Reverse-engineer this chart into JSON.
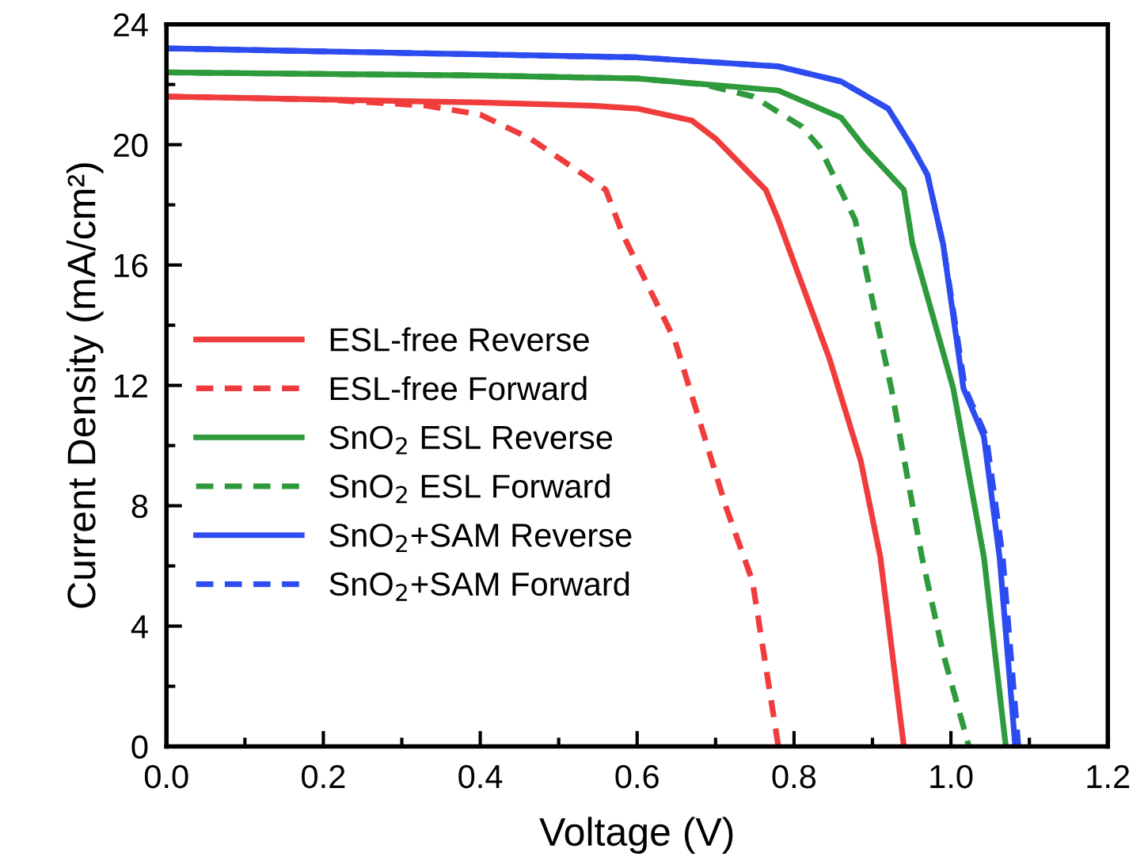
{
  "chart_data": {
    "type": "line",
    "xlabel": "Voltage (V)",
    "ylabel": "Current Density (mA/cm²)",
    "xlim": [
      0,
      1.2
    ],
    "ylim": [
      0,
      24
    ],
    "xticks": [
      {
        "value": 0,
        "label": "0.0"
      },
      {
        "value": 0.1,
        "label": null
      },
      {
        "value": 0.2,
        "label": "0.2"
      },
      {
        "value": 0.3,
        "label": null
      },
      {
        "value": 0.4,
        "label": "0.4"
      },
      {
        "value": 0.5,
        "label": null
      },
      {
        "value": 0.6,
        "label": "0.6"
      },
      {
        "value": 0.7,
        "label": null
      },
      {
        "value": 0.8,
        "label": "0.8"
      },
      {
        "value": 0.9,
        "label": null
      },
      {
        "value": 1.0,
        "label": "1.0"
      },
      {
        "value": 1.1,
        "label": null
      },
      {
        "value": 1.2,
        "label": "1.2"
      }
    ],
    "yticks": [
      0,
      {
        "value": 2,
        "label": null
      },
      4,
      {
        "value": 6,
        "label": null
      },
      8,
      {
        "value": 10,
        "label": null
      },
      12,
      {
        "value": 14,
        "label": null
      },
      16,
      {
        "value": 18,
        "label": null
      },
      20,
      {
        "value": 22,
        "label": null
      },
      24
    ],
    "grid": false,
    "legend": "center",
    "marker": "none",
    "series": [
      {
        "name": "ESL-free Reverse",
        "color": "#f03c3c",
        "line_style": "solid",
        "x": [
          0,
          0.2,
          0.4,
          0.54,
          0.6,
          0.67,
          0.7,
          0.764,
          0.78,
          0.845,
          0.885,
          0.91,
          0.94
        ],
        "values": [
          21.6,
          21.5,
          21.4,
          21.3,
          21.2,
          20.8,
          20.2,
          18.5,
          17.5,
          12.9,
          9.5,
          6.3,
          0
        ]
      },
      {
        "name": "ESL-free Forward",
        "color": "#f03c3c",
        "line_style": "dashed",
        "x": [
          0,
          0.2,
          0.33,
          0.4,
          0.464,
          0.56,
          0.582,
          0.648,
          0.714,
          0.747,
          0.78
        ],
        "values": [
          21.6,
          21.5,
          21.3,
          21.0,
          20.2,
          18.5,
          17.0,
          13.5,
          7.9,
          5.5,
          0
        ]
      },
      {
        "name": "SnO$_{2}$ ESL Reverse",
        "color": "#2e9a3c",
        "line_style": "solid",
        "x": [
          0,
          0.4,
          0.6,
          0.78,
          0.86,
          0.89,
          0.94,
          0.951,
          1.003,
          1.042,
          1.07
        ],
        "values": [
          22.4,
          22.3,
          22.2,
          21.8,
          20.9,
          19.9,
          18.5,
          16.7,
          11.9,
          6.3,
          0
        ]
      },
      {
        "name": "SnO$_{2}$ ESL Forward",
        "color": "#2e9a3c",
        "line_style": "dashed",
        "x": [
          0,
          0.4,
          0.6,
          0.685,
          0.748,
          0.81,
          0.833,
          0.878,
          0.924,
          0.963,
          0.99,
          1.023
        ],
        "values": [
          22.4,
          22.3,
          22.2,
          22.0,
          21.6,
          20.6,
          19.9,
          17.5,
          11.9,
          6.3,
          3.1,
          0
        ]
      },
      {
        "name": "SnO$_{2}$+SAM Reverse",
        "color": "#2d4cf0",
        "line_style": "solid",
        "x": [
          0,
          0.4,
          0.6,
          0.78,
          0.86,
          0.92,
          0.951,
          0.97,
          0.99,
          1.016,
          1.042,
          1.062,
          1.082
        ],
        "values": [
          23.2,
          23.0,
          22.9,
          22.6,
          22.1,
          21.2,
          19.9,
          19.0,
          16.7,
          11.9,
          10.3,
          6.3,
          0
        ]
      },
      {
        "name": "SnO$_{2}$+SAM Forward",
        "color": "#2d4cf0",
        "line_style": "dashed",
        "x": [
          0,
          0.4,
          0.6,
          0.78,
          0.86,
          0.92,
          0.951,
          0.97,
          0.99,
          1.018,
          1.045,
          1.066,
          1.086
        ],
        "values": [
          23.2,
          23.0,
          22.9,
          22.6,
          22.1,
          21.2,
          19.9,
          19.0,
          16.7,
          11.9,
          10.3,
          6.3,
          0
        ]
      }
    ]
  }
}
